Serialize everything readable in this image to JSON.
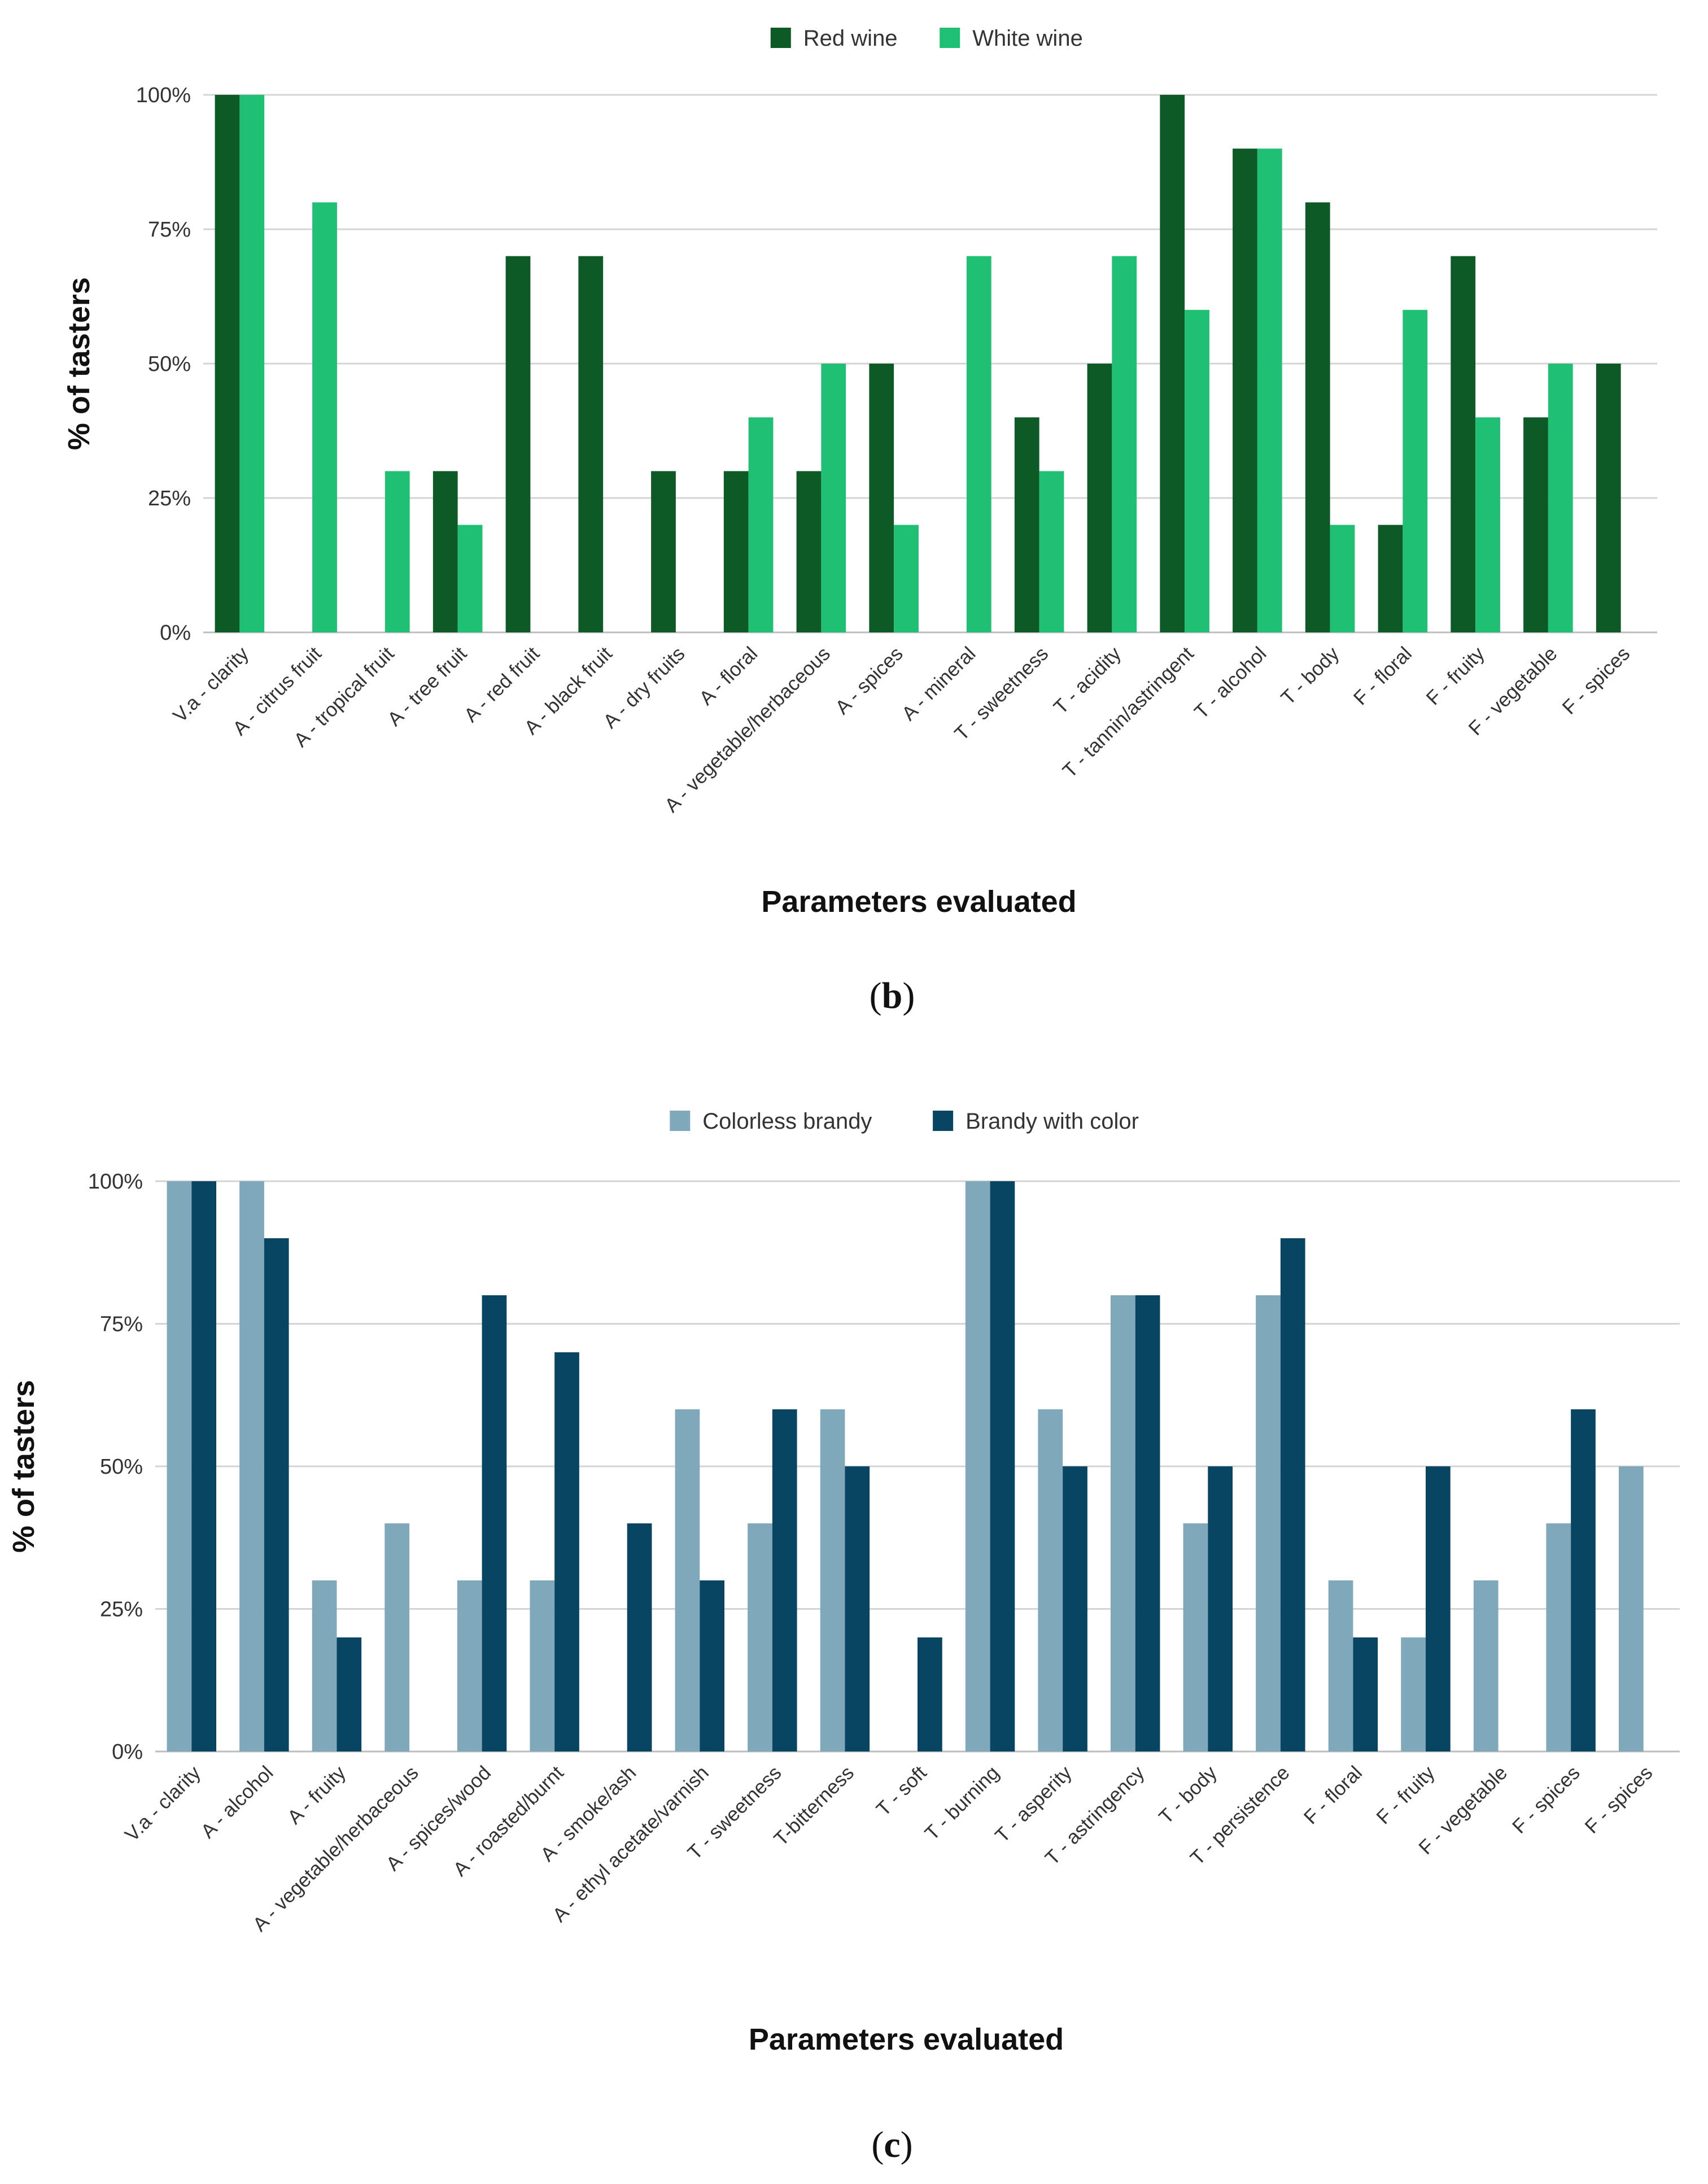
{
  "chart_data": [
    {
      "type": "bar",
      "ylabel": "% of tasters",
      "xlabel": "Parameters evaluated",
      "caption": "b",
      "ylim": [
        0,
        100
      ],
      "yticks": [
        "0%",
        "25%",
        "50%",
        "75%",
        "100%"
      ],
      "legend_position": "top-center",
      "grid": true,
      "categories": [
        "V.a - clarity",
        "A - citrus fruit",
        "A - tropical fruit",
        "A - tree fruit",
        "A - red fruit",
        "A - black fruit",
        "A - dry fruits",
        "A - floral",
        "A - vegetable/herbaceous",
        "A - spices",
        "A - mineral",
        "T - sweetness",
        "T - acidity",
        "T - tannin/astringent",
        "T - alcohol",
        "T - body",
        "F - floral",
        "F - fruity",
        "F - vegetable",
        "F - spices"
      ],
      "series": [
        {
          "name": "Red wine",
          "color": "#0d5a27",
          "values": [
            100,
            0,
            0,
            30,
            70,
            70,
            30,
            30,
            30,
            50,
            0,
            40,
            50,
            100,
            90,
            80,
            20,
            70,
            40,
            50
          ]
        },
        {
          "name": "White wine",
          "color": "#1fbf74",
          "values": [
            100,
            80,
            30,
            20,
            0,
            0,
            0,
            40,
            50,
            20,
            70,
            30,
            70,
            60,
            90,
            20,
            60,
            40,
            50,
            0
          ]
        }
      ]
    },
    {
      "type": "bar",
      "ylabel": "% of tasters",
      "xlabel": "Parameters evaluated",
      "caption": "c",
      "ylim": [
        0,
        100
      ],
      "yticks": [
        "0%",
        "25%",
        "50%",
        "75%",
        "100%"
      ],
      "legend_position": "top-center",
      "grid": true,
      "categories": [
        "V.a - clarity",
        "A - alcohol",
        "A - fruity",
        "A - vegetable/herbaceous",
        "A - spices/wood",
        "A - roasted/burnt",
        "A - smoke/ash",
        "A - ethyl acetate/varnish",
        "T - sweetness",
        "T-bitterness",
        "T - soft",
        "T - burning",
        "T - asperity",
        "T - astringency",
        "T - body",
        "T - persistence",
        "F - floral",
        "F - fruity",
        "F - vegetable",
        "F - spices",
        "F - spices"
      ],
      "series": [
        {
          "name": "Colorless brandy",
          "color": "#7fa8bb",
          "values": [
            100,
            100,
            30,
            40,
            30,
            30,
            0,
            60,
            40,
            60,
            0,
            100,
            60,
            80,
            40,
            80,
            30,
            20,
            30,
            40,
            50
          ]
        },
        {
          "name": "Brandy with color",
          "color": "#084562",
          "values": [
            100,
            90,
            20,
            0,
            80,
            70,
            40,
            30,
            60,
            50,
            20,
            100,
            50,
            80,
            50,
            90,
            20,
            50,
            0,
            60,
            0
          ]
        }
      ]
    }
  ]
}
